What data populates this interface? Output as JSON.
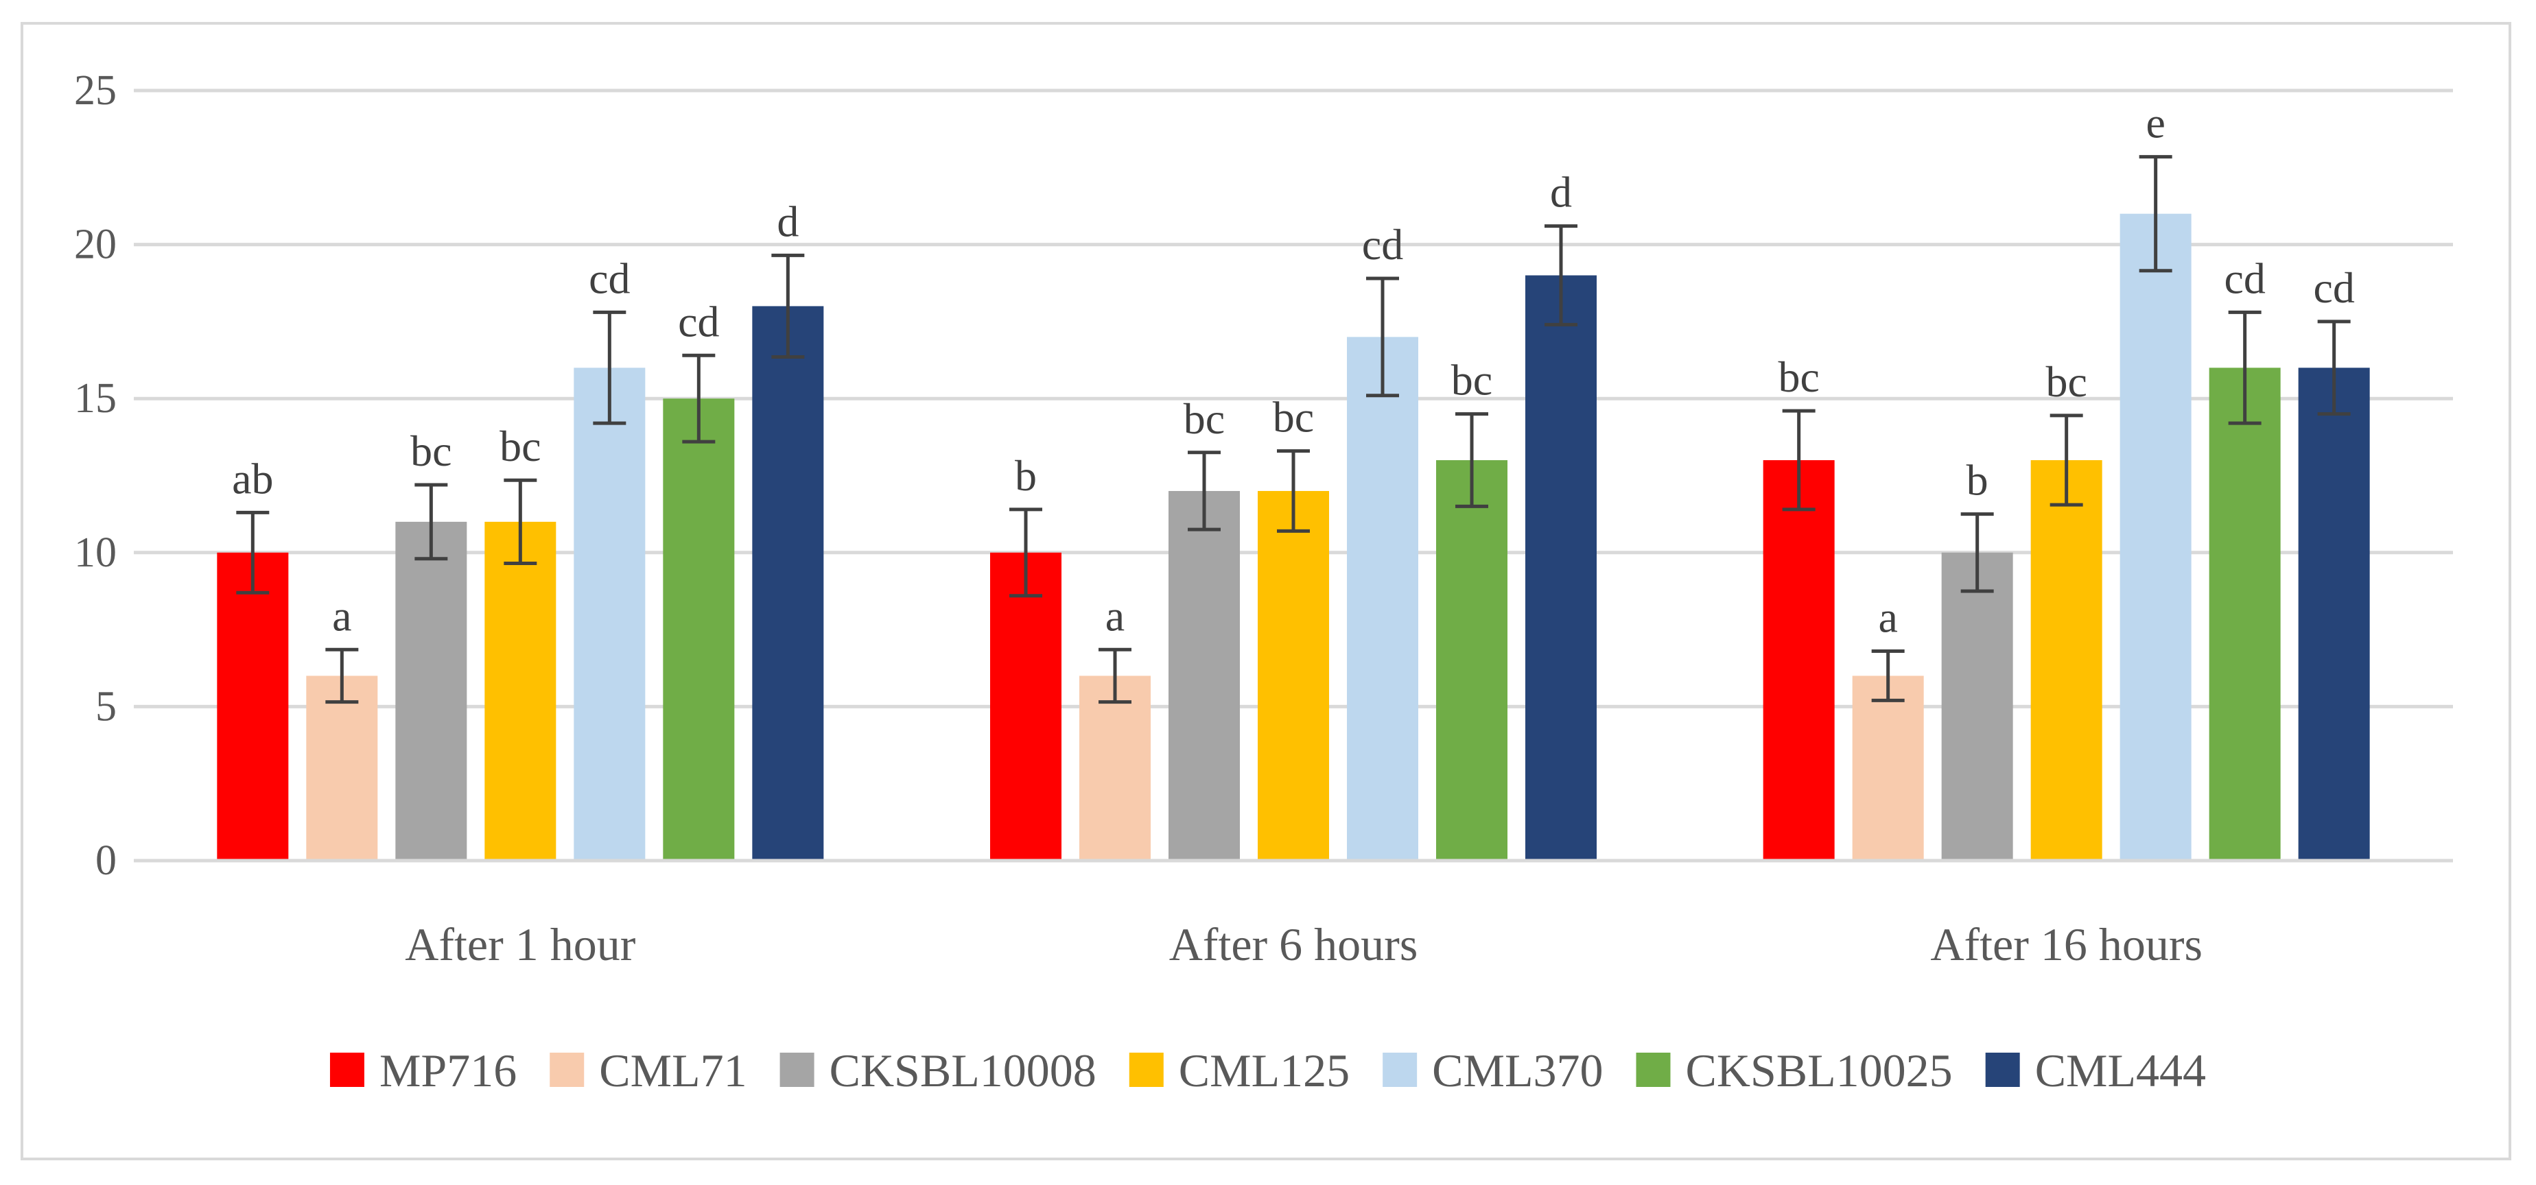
{
  "chart_data": {
    "type": "bar",
    "title": "",
    "xlabel": "",
    "ylabel": "",
    "ylim": [
      0,
      25
    ],
    "yticks": [
      0,
      5,
      10,
      15,
      20,
      25
    ],
    "grid": true,
    "legend_position": "bottom",
    "categories": [
      "After 1 hour",
      "After 6 hours",
      "After 16 hours"
    ],
    "series": [
      {
        "name": "MP716",
        "color": "#ff0000",
        "values": [
          10,
          10,
          13
        ],
        "errors": [
          1.3,
          1.4,
          1.6
        ],
        "letters": [
          "ab",
          "b",
          "bc"
        ]
      },
      {
        "name": "CML71",
        "color": "#f8cbad",
        "values": [
          6,
          6,
          6
        ],
        "errors": [
          0.85,
          0.85,
          0.8
        ],
        "letters": [
          "a",
          "a",
          "a"
        ]
      },
      {
        "name": "CKSBL10008",
        "color": "#a5a5a5",
        "values": [
          11,
          12,
          10
        ],
        "errors": [
          1.2,
          1.25,
          1.25
        ],
        "letters": [
          "bc",
          "bc",
          "b"
        ]
      },
      {
        "name": "CML125",
        "color": "#ffc000",
        "values": [
          11,
          12,
          13
        ],
        "errors": [
          1.35,
          1.3,
          1.45
        ],
        "letters": [
          "bc",
          "bc",
          "bc"
        ]
      },
      {
        "name": "CML370",
        "color": "#bdd7ee",
        "values": [
          16,
          17,
          21
        ],
        "errors": [
          1.8,
          1.9,
          1.85
        ],
        "letters": [
          "cd",
          "cd",
          "e"
        ]
      },
      {
        "name": "CKSBL10025",
        "color": "#70ad47",
        "values": [
          15,
          13,
          16
        ],
        "errors": [
          1.4,
          1.5,
          1.8
        ],
        "letters": [
          "cd",
          "bc",
          "cd"
        ]
      },
      {
        "name": "CML444",
        "color": "#264478",
        "values": [
          18,
          19,
          16
        ],
        "errors": [
          1.65,
          1.6,
          1.5
        ],
        "letters": [
          "d",
          "d",
          "cd"
        ]
      }
    ]
  }
}
